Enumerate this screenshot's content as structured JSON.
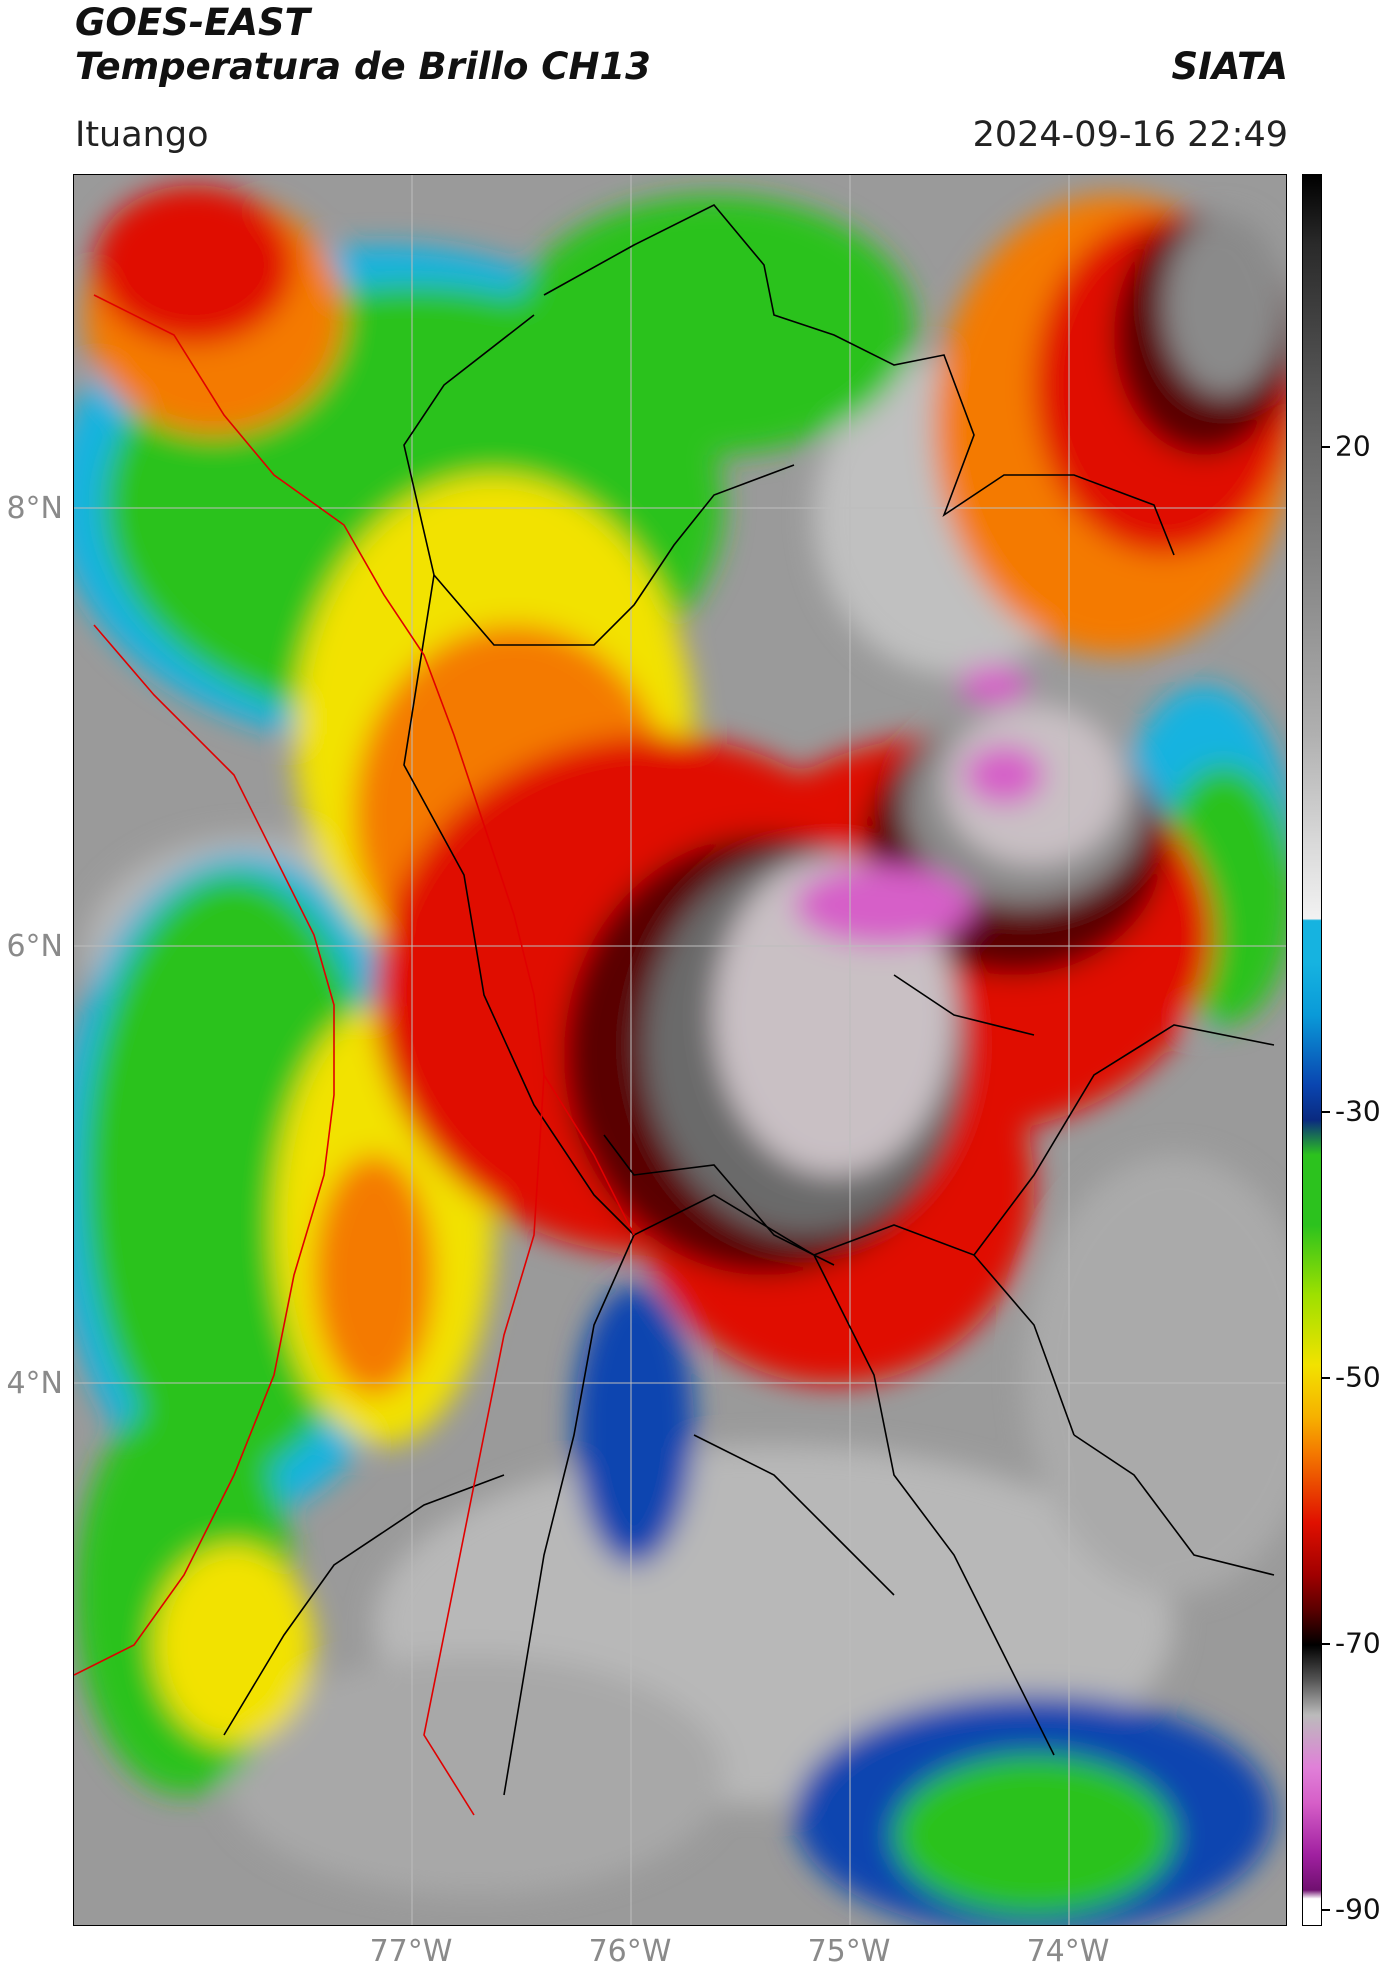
{
  "header": {
    "satellite": "GOES-EAST",
    "product": "Temperatura de Brillo CH13",
    "org": "SIATA",
    "location": "Ituango",
    "datetime": "2024-09-16 22:49"
  },
  "map": {
    "lat_labels": [
      "8°N",
      "6°N",
      "4°N"
    ],
    "lon_labels": [
      "77°W",
      "76°W",
      "75°W",
      "74°W"
    ]
  },
  "colorbar": {
    "labels": [
      "20",
      "-30",
      "-50",
      "-70",
      "-90"
    ]
  },
  "colors": {
    "background_gray": "#9a9a9a",
    "green": "#2cc21e",
    "yellow": "#f2e200",
    "orange": "#f47a00",
    "red": "#e01000",
    "dark_red": "#5a0000",
    "magenta": "#d65fc8",
    "blue": "#0a45b0",
    "cyan": "#16b3e0"
  }
}
